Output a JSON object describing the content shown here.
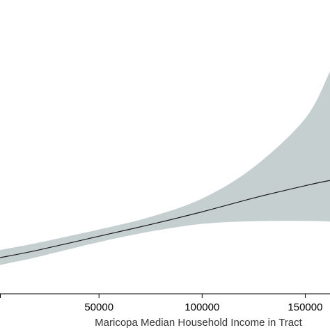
{
  "chart_data": {
    "type": "line",
    "title": "",
    "xlabel": "Maricopa Median Household Income in Tract",
    "ylabel": "",
    "x_ticks": [
      50000,
      100000,
      150000
    ],
    "x_tick_labels": [
      "50000",
      "100000",
      "150000"
    ],
    "xlim": [
      2000,
      162000
    ],
    "ylim": [
      0,
      1
    ],
    "grid": false,
    "series": [
      {
        "x": [
          2000,
          20000,
          50000,
          75000,
          100000,
          125000,
          150000,
          162000
        ],
        "y": [
          0.123,
          0.148,
          0.196,
          0.236,
          0.279,
          0.326,
          0.368,
          0.386
        ],
        "lower": [
          0.098,
          0.125,
          0.176,
          0.212,
          0.238,
          0.247,
          0.248,
          0.246
        ],
        "upper": [
          0.149,
          0.173,
          0.219,
          0.262,
          0.324,
          0.431,
          0.597,
          0.757
        ]
      }
    ],
    "colors": {
      "band": "#c6cfcf",
      "line": "#1a1a1a",
      "axis": "#000000"
    }
  }
}
